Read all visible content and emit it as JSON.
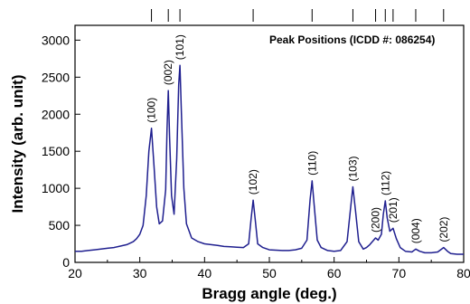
{
  "chart_data": {
    "type": "line",
    "title": "",
    "xlabel": "Bragg angle  (deg.)",
    "ylabel": "Intensity (arb. unit)",
    "xlim": [
      20,
      80
    ],
    "ylim": [
      0,
      3200
    ],
    "x_ticks": [
      20,
      30,
      40,
      50,
      60,
      70,
      80
    ],
    "y_ticks": [
      0,
      500,
      1000,
      1500,
      2000,
      2500,
      3000
    ],
    "grid": false,
    "reference_note": "Peak Positions (ICDD #: 086254)",
    "reference_positions": [
      31.8,
      34.4,
      36.2,
      47.5,
      56.6,
      62.9,
      66.4,
      67.9,
      69.1,
      72.6,
      76.9
    ],
    "line_color": "#1f1f8f",
    "peaks": [
      {
        "label": "(100)",
        "x": 31.8,
        "y": 1810
      },
      {
        "label": "(002)",
        "x": 34.4,
        "y": 2320
      },
      {
        "label": "(101)",
        "x": 36.2,
        "y": 2660
      },
      {
        "label": "(102)",
        "x": 47.5,
        "y": 840
      },
      {
        "label": "(110)",
        "x": 56.6,
        "y": 1100
      },
      {
        "label": "(103)",
        "x": 62.9,
        "y": 1020
      },
      {
        "label": "(200)",
        "x": 66.4,
        "y": 330
      },
      {
        "label": "(112)",
        "x": 67.9,
        "y": 830
      },
      {
        "label": "(201)",
        "x": 69.1,
        "y": 460
      },
      {
        "label": "(004)",
        "x": 72.6,
        "y": 180
      },
      {
        "label": "(202)",
        "x": 76.9,
        "y": 200
      }
    ],
    "series": [
      {
        "x": [
          20,
          21,
          22,
          23,
          24,
          25,
          26,
          27,
          28,
          29,
          29.5,
          30,
          30.5,
          31,
          31.4,
          31.8,
          32.2,
          32.6,
          33,
          33.5,
          34,
          34.2,
          34.4,
          34.6,
          34.9,
          35.3,
          35.7,
          36,
          36.2,
          36.4,
          36.8,
          37.2,
          38,
          39,
          40,
          41,
          42,
          43,
          44,
          45,
          46,
          46.8,
          47.2,
          47.5,
          47.8,
          48.2,
          49,
          50,
          51,
          52,
          53,
          54,
          55,
          55.8,
          56.3,
          56.6,
          56.9,
          57.4,
          58,
          59,
          60,
          61,
          62,
          62.5,
          62.9,
          63.3,
          63.8,
          64.5,
          65,
          65.5,
          66,
          66.4,
          66.8,
          67.3,
          67.6,
          67.9,
          68.2,
          68.6,
          69.1,
          69.6,
          70.2,
          71,
          72,
          72.6,
          73.2,
          74,
          75,
          76,
          76.9,
          77.5,
          78,
          79,
          80
        ],
        "y": [
          150,
          150,
          160,
          170,
          180,
          190,
          200,
          220,
          240,
          280,
          320,
          380,
          500,
          900,
          1500,
          1810,
          1300,
          750,
          520,
          560,
          980,
          1800,
          2320,
          1700,
          900,
          650,
          1400,
          2400,
          2660,
          2100,
          1000,
          520,
          330,
          280,
          250,
          240,
          230,
          215,
          210,
          205,
          200,
          250,
          600,
          840,
          600,
          250,
          200,
          170,
          165,
          160,
          160,
          170,
          190,
          300,
          850,
          1100,
          800,
          300,
          200,
          160,
          150,
          160,
          280,
          700,
          1020,
          700,
          280,
          180,
          200,
          240,
          290,
          330,
          300,
          380,
          650,
          830,
          600,
          420,
          460,
          320,
          200,
          150,
          140,
          180,
          150,
          130,
          130,
          140,
          200,
          150,
          120,
          110,
          110
        ]
      }
    ]
  }
}
